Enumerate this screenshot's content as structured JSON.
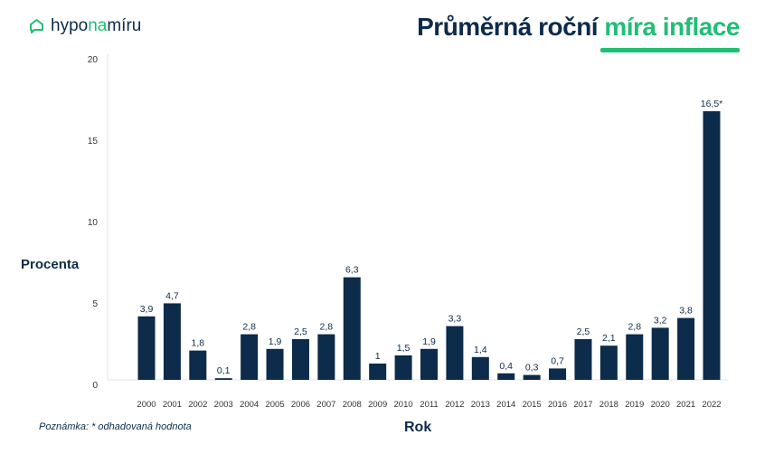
{
  "logo": {
    "part1": "hypo",
    "part2": "na",
    "part3": "míru"
  },
  "title": {
    "main": "Průměrná roční",
    "accent": "míra inflace"
  },
  "note": "Poznámka: * odhadovaná hodnota",
  "colors": {
    "bar": "#0d2b4a",
    "accent": "#1fbf75"
  },
  "chart_data": {
    "type": "bar",
    "title": "Průměrná roční míra inflace",
    "xlabel": "Rok",
    "ylabel": "Procenta",
    "ylim": [
      0,
      20
    ],
    "yticks": [
      "0",
      "5",
      "10",
      "15",
      "20"
    ],
    "categories": [
      "2000",
      "2001",
      "2002",
      "2003",
      "2004",
      "2005",
      "2006",
      "2007",
      "2008",
      "2009",
      "2010",
      "2011",
      "2012",
      "2013",
      "2014",
      "2015",
      "2016",
      "2017",
      "2018",
      "2019",
      "2020",
      "2021",
      "2022"
    ],
    "values": [
      3.9,
      4.7,
      1.8,
      0.1,
      2.8,
      1.9,
      2.5,
      2.8,
      6.3,
      1,
      1.5,
      1.9,
      3.3,
      1.4,
      0.4,
      0.3,
      0.7,
      2.5,
      2.1,
      2.8,
      3.2,
      3.8,
      16.5
    ],
    "labels": [
      "3,9",
      "4,7",
      "1,8",
      "0,1",
      "2,8",
      "1,9",
      "2,5",
      "2,8",
      "6,3",
      "1",
      "1,5",
      "1,9",
      "3,3",
      "1,4",
      "0,4",
      "0,3",
      "0,7",
      "2,5",
      "2,1",
      "2,8",
      "3,2",
      "3,8",
      "16,5*"
    ]
  }
}
